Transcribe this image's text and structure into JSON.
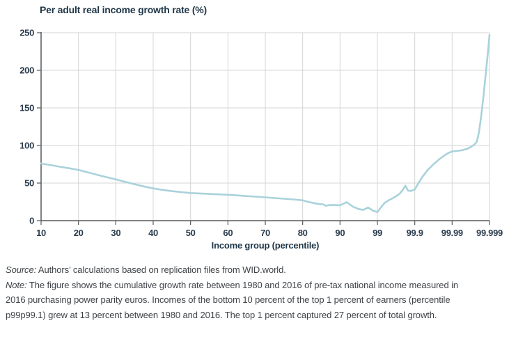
{
  "chart_data": {
    "type": "line",
    "title": "Per adult real income growth rate (%)",
    "xlabel": "Income group (percentile)",
    "x_tick_labels": [
      "10",
      "20",
      "30",
      "40",
      "50",
      "60",
      "70",
      "80",
      "90",
      "99",
      "99.9",
      "99.99",
      "99.999"
    ],
    "y_tick_labels": [
      "0",
      "50",
      "100",
      "150",
      "200",
      "250"
    ],
    "ylim": [
      0,
      250
    ],
    "grid": true,
    "legend": "none",
    "x_axis_units": "tick index: 0 = percentile 10 ... 12 = percentile 99.999 (ticks evenly spaced, top percentiles stretched)",
    "colors": {
      "line": "#a9d2db",
      "grid": "#d5d5d5",
      "axis": "#57595b",
      "chart_text": "#2a3b4c"
    },
    "points": [
      [
        0,
        76
      ],
      [
        0.25,
        74
      ],
      [
        0.5,
        71.8
      ],
      [
        0.75,
        69.7
      ],
      [
        1,
        67.5
      ],
      [
        1.25,
        64.3
      ],
      [
        1.5,
        61
      ],
      [
        1.75,
        57.9
      ],
      [
        2,
        55
      ],
      [
        2.25,
        51.6
      ],
      [
        2.5,
        48.5
      ],
      [
        2.75,
        45.6
      ],
      [
        3,
        43
      ],
      [
        3.25,
        40.9
      ],
      [
        3.5,
        39.3
      ],
      [
        3.75,
        38
      ],
      [
        4,
        36.8
      ],
      [
        4.25,
        36.2
      ],
      [
        4.5,
        35.6
      ],
      [
        4.75,
        35
      ],
      [
        5,
        34.4
      ],
      [
        5.25,
        33.6
      ],
      [
        5.5,
        32.7
      ],
      [
        5.75,
        31.9
      ],
      [
        6,
        31
      ],
      [
        6.25,
        30.1
      ],
      [
        6.5,
        29.2
      ],
      [
        6.75,
        28.2
      ],
      [
        7,
        27
      ],
      [
        7.15,
        25
      ],
      [
        7.3,
        23.3
      ],
      [
        7.45,
        22
      ],
      [
        7.55,
        21.8
      ],
      [
        7.62,
        19.8
      ],
      [
        7.72,
        20.7
      ],
      [
        7.85,
        20.8
      ],
      [
        8,
        20.5
      ],
      [
        8.18,
        24.5
      ],
      [
        8.35,
        18.5
      ],
      [
        8.5,
        15.5
      ],
      [
        8.62,
        14.3
      ],
      [
        8.75,
        17.5
      ],
      [
        8.88,
        13.4
      ],
      [
        9,
        11.5
      ],
      [
        9.1,
        18
      ],
      [
        9.2,
        24
      ],
      [
        9.3,
        27
      ],
      [
        9.4,
        29.5
      ],
      [
        9.5,
        32.5
      ],
      [
        9.6,
        36
      ],
      [
        9.68,
        41
      ],
      [
        9.75,
        46.5
      ],
      [
        9.82,
        40
      ],
      [
        9.9,
        39.5
      ],
      [
        10,
        41.5
      ],
      [
        10.1,
        50
      ],
      [
        10.2,
        58
      ],
      [
        10.35,
        67.5
      ],
      [
        10.5,
        75
      ],
      [
        10.65,
        81.5
      ],
      [
        10.8,
        87
      ],
      [
        10.9,
        90
      ],
      [
        11,
        92
      ],
      [
        11.1,
        92.6
      ],
      [
        11.25,
        93.5
      ],
      [
        11.4,
        95.5
      ],
      [
        11.5,
        98
      ],
      [
        11.6,
        101.5
      ],
      [
        11.66,
        105
      ],
      [
        11.72,
        118
      ],
      [
        11.78,
        140
      ],
      [
        11.85,
        170
      ],
      [
        11.92,
        205
      ],
      [
        11.97,
        230
      ],
      [
        12,
        247
      ]
    ]
  },
  "footer": {
    "source_label": "Source:",
    "source_text": "Authors’ calculations based on replication files from WID.world.",
    "note_label": "Note:",
    "note_lines": [
      "The figure shows the cumulative growth rate between 1980 and 2016 of pre-tax national income measured in",
      "2016 purchasing power parity euros. Incomes of the bottom 10 percent of the top 1 percent of earners (percentile",
      "p99p99.1) grew at 13 percent between 1980 and 2016. The top 1 percent captured 27 percent of total growth."
    ]
  }
}
